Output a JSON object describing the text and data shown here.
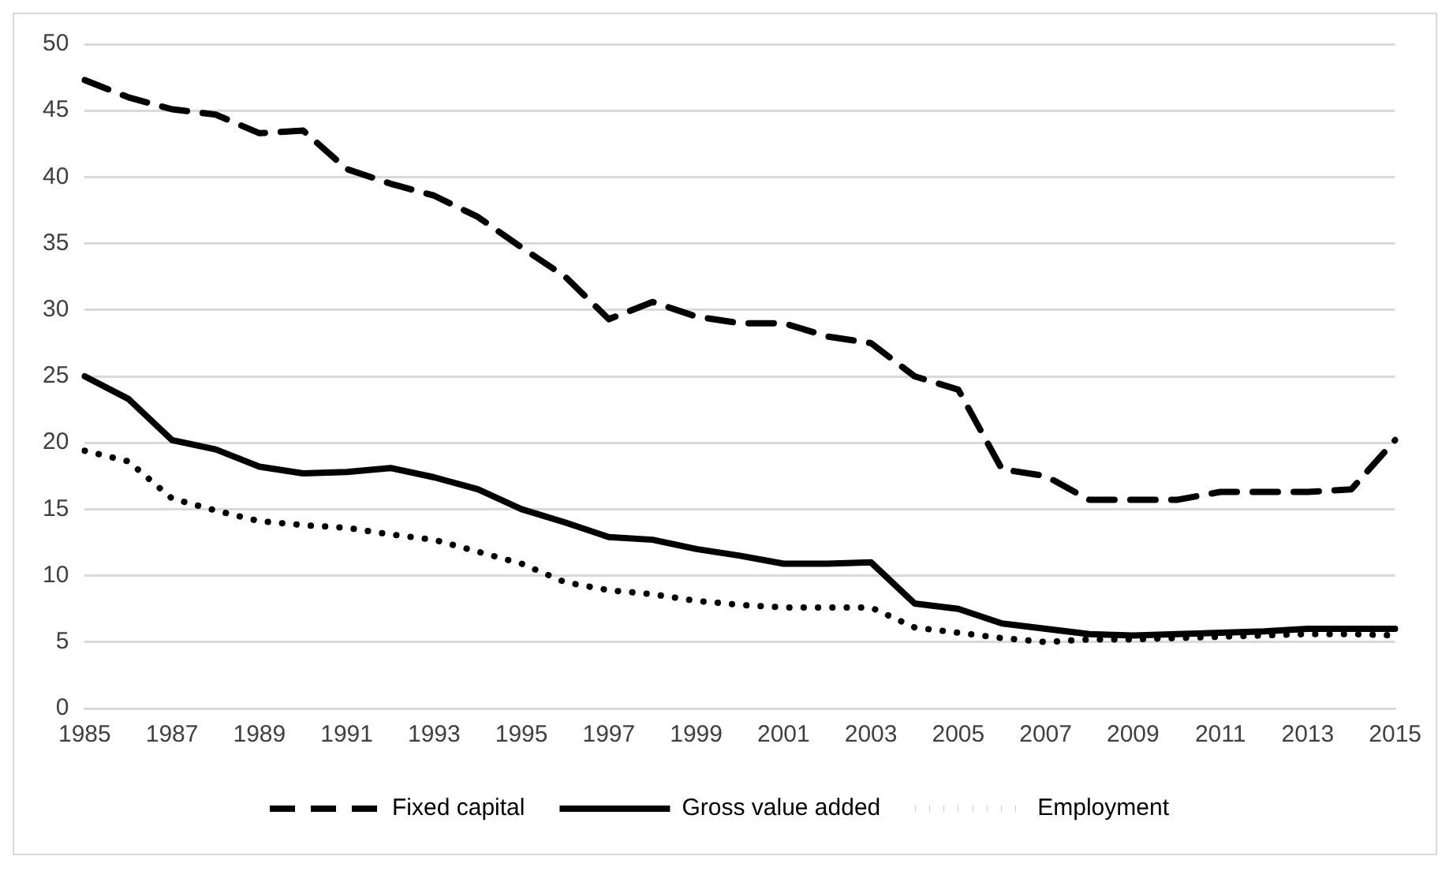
{
  "chart_data": {
    "type": "line",
    "categories": [
      "1985",
      null,
      "1987",
      null,
      "1989",
      null,
      "1991",
      null,
      "1993",
      null,
      "1995",
      null,
      "1997",
      null,
      "1999",
      null,
      "2001",
      null,
      "2003",
      null,
      "2005",
      null,
      "2007",
      null,
      "2009",
      null,
      "2011",
      null,
      "2013",
      null,
      "2015"
    ],
    "series": [
      {
        "name": "Fixed capital",
        "color": "#000000",
        "line_style": "dashed",
        "values": [
          47.3,
          46,
          45.1,
          44.7,
          43.3,
          43.5,
          40.6,
          39.5,
          38.6,
          37,
          34.7,
          32.5,
          29.3,
          30.6,
          29.5,
          29,
          29,
          28,
          27.5,
          25,
          24,
          18,
          17.5,
          15.7,
          15.7,
          15.7,
          16.3,
          16.3,
          16.3,
          16.5,
          20.2
        ]
      },
      {
        "name": "Gross value added",
        "color": "#000000",
        "line_style": "solid",
        "values": [
          25,
          23.3,
          20.2,
          19.5,
          18.2,
          17.7,
          17.8,
          18.1,
          17.4,
          16.5,
          15,
          14,
          12.9,
          12.7,
          12,
          11.5,
          10.9,
          10.9,
          11,
          7.9,
          7.5,
          6.4,
          6,
          5.6,
          5.5,
          5.6,
          5.7,
          5.8,
          6,
          6,
          6
        ]
      },
      {
        "name": "Employment",
        "color": "#000000",
        "line_style": "dotted",
        "values": [
          19.4,
          18.6,
          15.8,
          14.9,
          14.1,
          13.8,
          13.6,
          13.1,
          12.7,
          11.8,
          10.9,
          9.5,
          8.9,
          8.6,
          8.1,
          7.8,
          7.6,
          7.6,
          7.6,
          6.1,
          5.7,
          5.3,
          5,
          5.2,
          5.2,
          5.3,
          5.4,
          5.5,
          5.6,
          5.6,
          5.5
        ]
      }
    ],
    "ylim": [
      0,
      50
    ],
    "yticks": [
      0,
      5,
      10,
      15,
      20,
      25,
      30,
      35,
      40,
      45,
      50
    ],
    "grid": "y",
    "legend": "bottom",
    "marker": "none"
  }
}
